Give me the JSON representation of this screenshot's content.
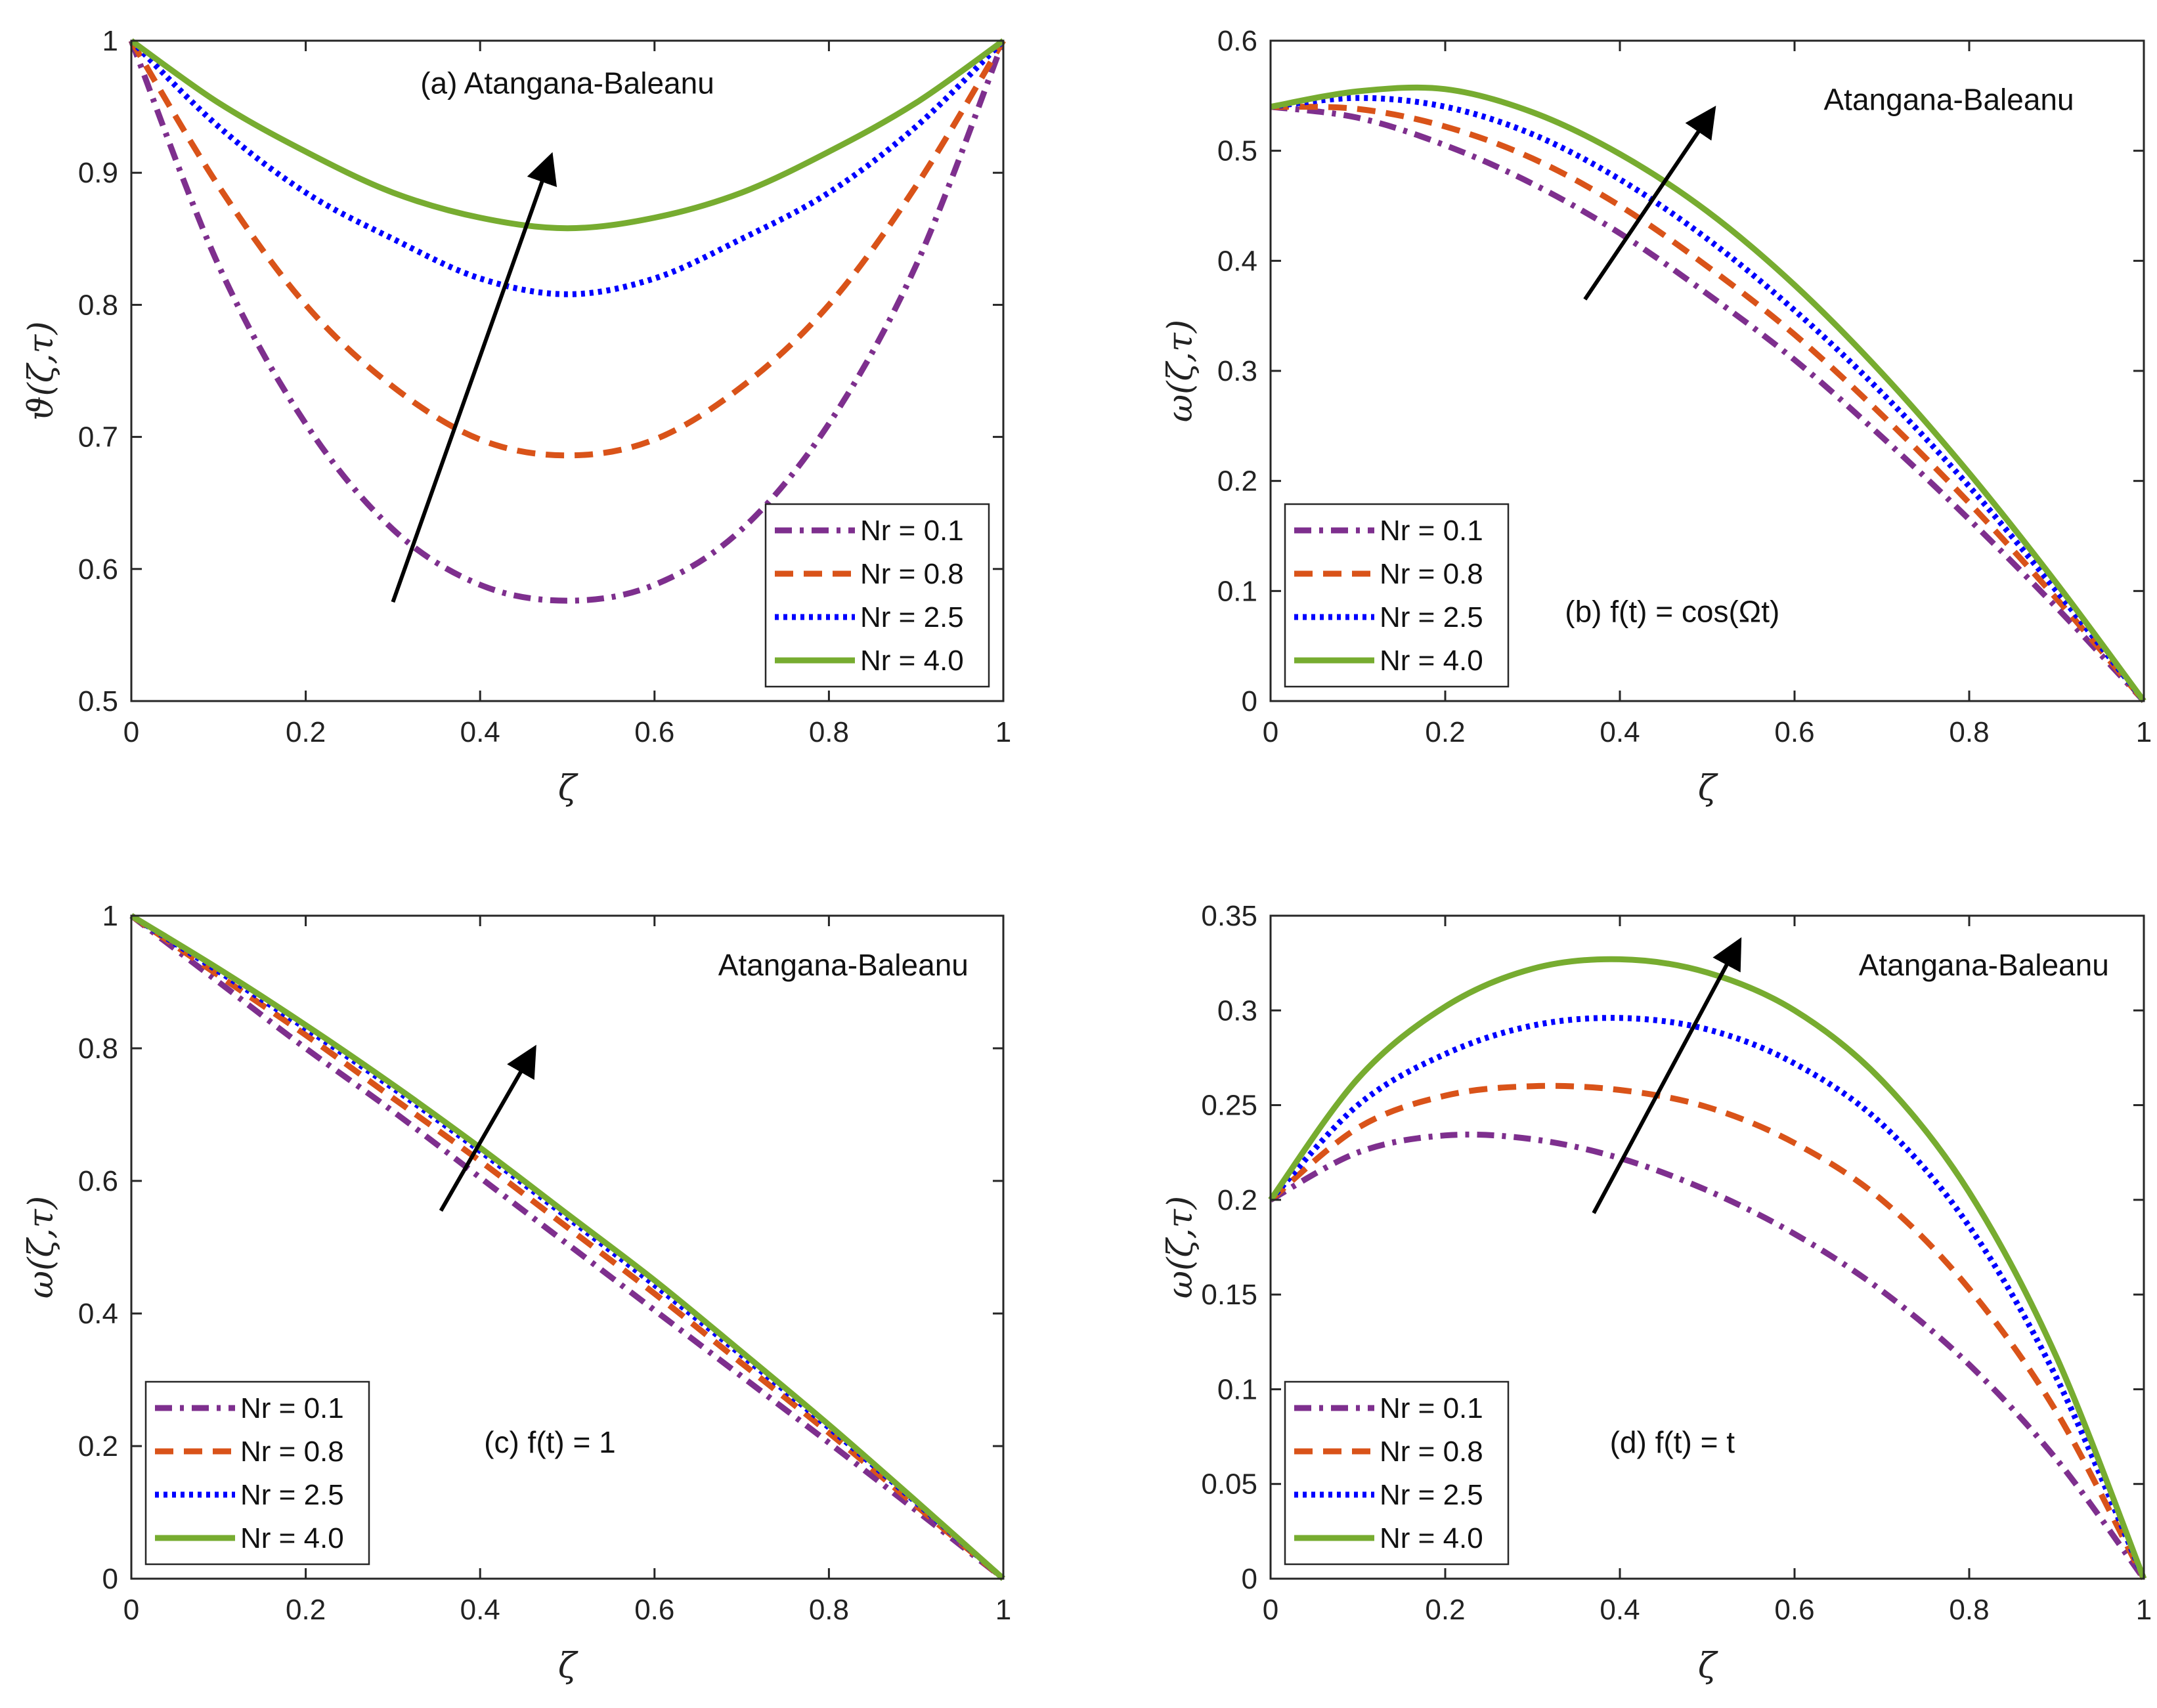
{
  "chart_data": [
    {
      "type": "line",
      "panel": "a",
      "title": "",
      "annotation": "(a) Atangana-Baleanu",
      "xlabel": "ζ",
      "ylabel": "ϑ(ζ,τ)",
      "xlim": [
        0,
        1
      ],
      "ylim": [
        0.5,
        1
      ],
      "xticks": [
        0,
        0.2,
        0.4,
        0.6,
        0.8,
        1
      ],
      "xtick_labels": [
        "0",
        "0.2",
        "0.4",
        "0.6",
        "0.8",
        "1"
      ],
      "yticks": [
        0.5,
        0.6,
        0.7,
        0.8,
        0.9,
        1
      ],
      "ytick_labels": [
        "0.5",
        "0.6",
        "0.7",
        "0.8",
        "0.9",
        "1"
      ],
      "legend_position": "bottom-right",
      "x": [
        0,
        0.1,
        0.2,
        0.3,
        0.4,
        0.5,
        0.6,
        0.7,
        0.8,
        0.9,
        1.0
      ],
      "series": [
        {
          "name": "Nr = 0.1",
          "color": "#7E2F8E",
          "style": "dashdot",
          "values": [
            1.0,
            0.83,
            0.71,
            0.63,
            0.588,
            0.576,
            0.588,
            0.63,
            0.71,
            0.83,
            1.0
          ]
        },
        {
          "name": "Nr = 0.8",
          "color": "#D95319",
          "style": "dashed",
          "values": [
            1.0,
            0.89,
            0.8,
            0.738,
            0.698,
            0.686,
            0.698,
            0.738,
            0.8,
            0.89,
            1.0
          ]
        },
        {
          "name": "Nr = 2.5",
          "color": "#0000FF",
          "style": "dotted",
          "values": [
            1.0,
            0.935,
            0.885,
            0.85,
            0.82,
            0.808,
            0.82,
            0.85,
            0.885,
            0.935,
            1.0
          ]
        },
        {
          "name": "Nr = 4.0",
          "color": "#77AC30",
          "style": "solid",
          "values": [
            1.0,
            0.953,
            0.916,
            0.885,
            0.866,
            0.858,
            0.866,
            0.885,
            0.916,
            0.953,
            1.0
          ]
        }
      ],
      "arrow": {
        "from": [
          0.3,
          0.575
        ],
        "to": [
          0.48,
          0.91
        ]
      }
    },
    {
      "type": "line",
      "panel": "b",
      "title": "",
      "annotations": [
        "Atangana-Baleanu",
        "(b) f(t) = cos(Ωt)"
      ],
      "xlabel": "ζ",
      "ylabel": "ω(ζ,τ)",
      "xlim": [
        0,
        1
      ],
      "ylim": [
        0,
        0.6
      ],
      "xticks": [
        0,
        0.2,
        0.4,
        0.6,
        0.8,
        1
      ],
      "xtick_labels": [
        "0",
        "0.2",
        "0.4",
        "0.6",
        "0.8",
        "1"
      ],
      "yticks": [
        0,
        0.1,
        0.2,
        0.3,
        0.4,
        0.5,
        0.6
      ],
      "ytick_labels": [
        "0",
        "0.1",
        "0.2",
        "0.3",
        "0.4",
        "0.5",
        "0.6"
      ],
      "legend_position": "bottom-left",
      "x": [
        0,
        0.1,
        0.2,
        0.3,
        0.4,
        0.5,
        0.6,
        0.7,
        0.8,
        0.9,
        1.0
      ],
      "series": [
        {
          "name": "Nr = 0.1",
          "color": "#7E2F8E",
          "style": "dashdot",
          "values": [
            0.54,
            0.53,
            0.505,
            0.47,
            0.425,
            0.37,
            0.31,
            0.24,
            0.165,
            0.085,
            0.0
          ]
        },
        {
          "name": "Nr = 0.8",
          "color": "#D95319",
          "style": "dashed",
          "values": [
            0.54,
            0.538,
            0.522,
            0.493,
            0.45,
            0.395,
            0.333,
            0.26,
            0.18,
            0.093,
            0.0
          ]
        },
        {
          "name": "Nr = 2.5",
          "color": "#0000FF",
          "style": "dotted",
          "values": [
            0.54,
            0.548,
            0.54,
            0.515,
            0.474,
            0.42,
            0.355,
            0.28,
            0.195,
            0.1,
            0.0
          ]
        },
        {
          "name": "Nr = 4.0",
          "color": "#77AC30",
          "style": "solid",
          "values": [
            0.54,
            0.554,
            0.556,
            0.535,
            0.497,
            0.445,
            0.378,
            0.298,
            0.207,
            0.107,
            0.0
          ]
        }
      ],
      "arrow": {
        "from": [
          0.36,
          0.365
        ],
        "to": [
          0.505,
          0.535
        ]
      }
    },
    {
      "type": "line",
      "panel": "c",
      "title": "",
      "annotations": [
        "Atangana-Baleanu",
        "(c) f(t) = 1"
      ],
      "xlabel": "ζ",
      "ylabel": "ω(ζ,τ)",
      "xlim": [
        0,
        1
      ],
      "ylim": [
        0,
        1
      ],
      "xticks": [
        0,
        0.2,
        0.4,
        0.6,
        0.8,
        1
      ],
      "xtick_labels": [
        "0",
        "0.2",
        "0.4",
        "0.6",
        "0.8",
        "1"
      ],
      "yticks": [
        0,
        0.2,
        0.4,
        0.6,
        0.8,
        1
      ],
      "ytick_labels": [
        "0",
        "0.2",
        "0.4",
        "0.6",
        "0.8",
        "1"
      ],
      "legend_position": "bottom-left",
      "x": [
        0,
        0.1,
        0.2,
        0.3,
        0.4,
        0.5,
        0.6,
        0.7,
        0.8,
        0.9,
        1.0
      ],
      "series": [
        {
          "name": "Nr = 0.1",
          "color": "#7E2F8E",
          "style": "dashdot",
          "values": [
            1.0,
            0.9,
            0.8,
            0.705,
            0.605,
            0.505,
            0.405,
            0.305,
            0.205,
            0.103,
            0.0
          ]
        },
        {
          "name": "Nr = 0.8",
          "color": "#D95319",
          "style": "dashed",
          "values": [
            1.0,
            0.91,
            0.82,
            0.725,
            0.63,
            0.53,
            0.43,
            0.325,
            0.22,
            0.11,
            0.0
          ]
        },
        {
          "name": "Nr = 2.5",
          "color": "#0000FF",
          "style": "dotted",
          "values": [
            1.0,
            0.916,
            0.83,
            0.74,
            0.645,
            0.545,
            0.443,
            0.337,
            0.228,
            0.115,
            0.0
          ]
        },
        {
          "name": "Nr = 4.0",
          "color": "#77AC30",
          "style": "solid",
          "values": [
            1.0,
            0.92,
            0.835,
            0.745,
            0.65,
            0.55,
            0.45,
            0.342,
            0.232,
            0.117,
            0.0
          ]
        }
      ],
      "arrow": {
        "from": [
          0.355,
          0.555
        ],
        "to": [
          0.46,
          0.795
        ]
      }
    },
    {
      "type": "line",
      "panel": "d",
      "title": "",
      "annotations": [
        "Atangana-Baleanu",
        "(d) f(t) = t"
      ],
      "xlabel": "ζ",
      "ylabel": "ω(ζ,τ)",
      "xlim": [
        0,
        1
      ],
      "ylim": [
        0,
        0.35
      ],
      "xticks": [
        0,
        0.2,
        0.4,
        0.6,
        0.8,
        1
      ],
      "xtick_labels": [
        "0",
        "0.2",
        "0.4",
        "0.6",
        "0.8",
        "1"
      ],
      "yticks": [
        0,
        0.05,
        0.1,
        0.15,
        0.2,
        0.25,
        0.3,
        0.35
      ],
      "ytick_labels": [
        "0",
        "0.05",
        "0.1",
        "0.15",
        "0.2",
        "0.25",
        "0.3",
        "0.35"
      ],
      "legend_position": "bottom-left",
      "x": [
        0,
        0.1,
        0.2,
        0.3,
        0.4,
        0.5,
        0.6,
        0.7,
        0.8,
        0.9,
        1.0
      ],
      "series": [
        {
          "name": "Nr = 0.1",
          "color": "#7E2F8E",
          "style": "dashdot",
          "values": [
            0.2,
            0.225,
            0.234,
            0.232,
            0.222,
            0.205,
            0.182,
            0.152,
            0.113,
            0.063,
            0.0
          ]
        },
        {
          "name": "Nr = 0.8",
          "color": "#D95319",
          "style": "dashed",
          "values": [
            0.2,
            0.238,
            0.255,
            0.26,
            0.258,
            0.249,
            0.23,
            0.2,
            0.153,
            0.088,
            0.0
          ]
        },
        {
          "name": "Nr = 2.5",
          "color": "#0000FF",
          "style": "dotted",
          "values": [
            0.2,
            0.25,
            0.277,
            0.292,
            0.296,
            0.29,
            0.272,
            0.24,
            0.186,
            0.106,
            0.0
          ]
        },
        {
          "name": "Nr = 4.0",
          "color": "#77AC30",
          "style": "solid",
          "values": [
            0.2,
            0.264,
            0.302,
            0.322,
            0.327,
            0.32,
            0.3,
            0.263,
            0.204,
            0.117,
            0.0
          ]
        }
      ],
      "arrow": {
        "from": [
          0.37,
          0.193
        ],
        "to": [
          0.535,
          0.335
        ]
      }
    }
  ]
}
